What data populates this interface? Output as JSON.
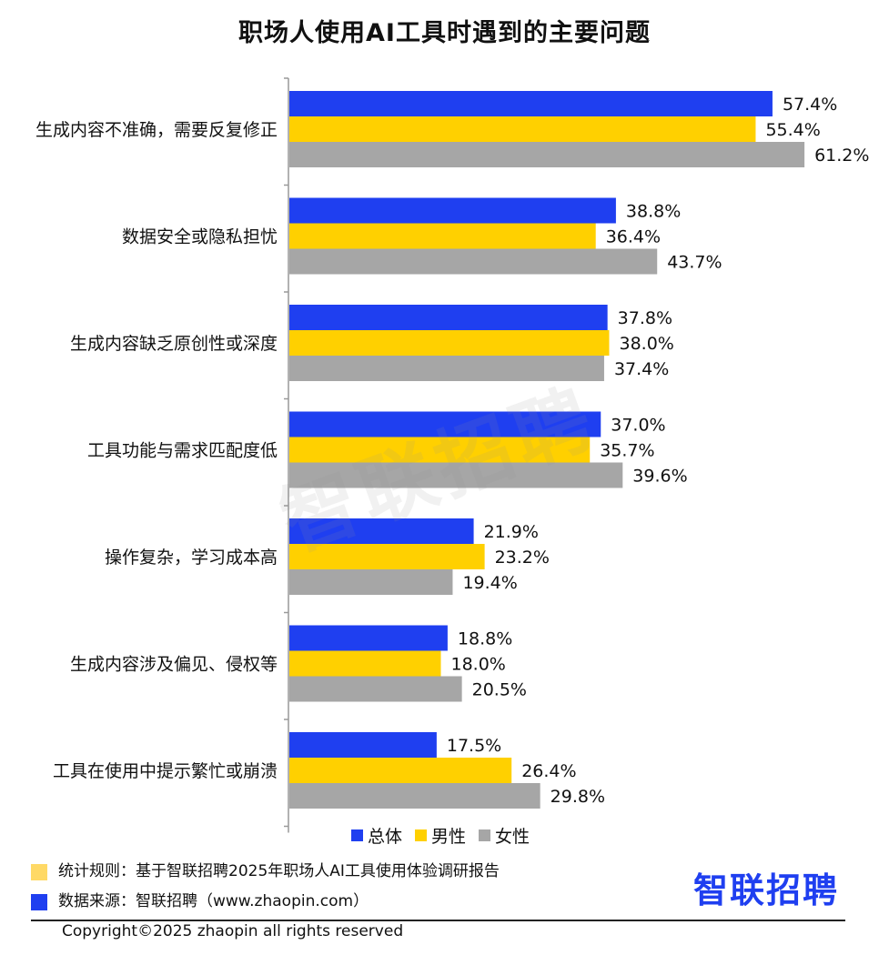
{
  "title": "职场人使用AI工具时遇到的主要问题",
  "watermark": "智联招聘",
  "chart_data": {
    "type": "bar",
    "orientation": "horizontal",
    "title": "职场人使用AI工具时遇到的主要问题",
    "categories": [
      "生成内容不准确，需要反复修正",
      "数据安全或隐私担忧",
      "生成内容缺乏原创性或深度",
      "工具功能与需求匹配度低",
      "操作复杂，学习成本高",
      "生成内容涉及偏见、侵权等",
      "工具在使用中提示繁忙或崩溃"
    ],
    "series": [
      {
        "name": "总体",
        "color": "#1f3ff0",
        "values": [
          57.4,
          38.8,
          37.8,
          37.0,
          21.9,
          18.8,
          17.5
        ],
        "labels": [
          "57.4%",
          "38.8%",
          "37.8%",
          "37.0%",
          "21.9%",
          "18.8%",
          "17.5%"
        ]
      },
      {
        "name": "男性",
        "color": "#ffd000",
        "values": [
          55.4,
          36.4,
          38.0,
          35.7,
          23.2,
          18.0,
          26.4
        ],
        "labels": [
          "55.4%",
          "36.4%",
          "38.0%",
          "35.7%",
          "23.2%",
          "18.0%",
          "26.4%"
        ]
      },
      {
        "name": "女性",
        "color": "#a6a6a6",
        "values": [
          61.2,
          43.7,
          37.4,
          39.6,
          19.4,
          20.5,
          29.8
        ],
        "labels": [
          "61.2%",
          "43.7%",
          "37.4%",
          "39.6%",
          "19.4%",
          "20.5%",
          "29.8%"
        ]
      }
    ],
    "grid": false,
    "legend_position": "bottom"
  },
  "legend": [
    {
      "label": "总体",
      "color": "#1f3ff0"
    },
    {
      "label": "男性",
      "color": "#ffd000"
    },
    {
      "label": "女性",
      "color": "#a6a6a6"
    }
  ],
  "notes": [
    {
      "text": "统计规则：基于智联招聘2025年职场人AI工具使用体验调研报告",
      "color": "#ffd966"
    },
    {
      "text": "数据来源：智联招聘（www.zhaopin.com）",
      "color": "#1f3ff0"
    }
  ],
  "brand_logo": "智联招聘",
  "copyright": "Copyright©2025 zhaopin all rights reserved"
}
